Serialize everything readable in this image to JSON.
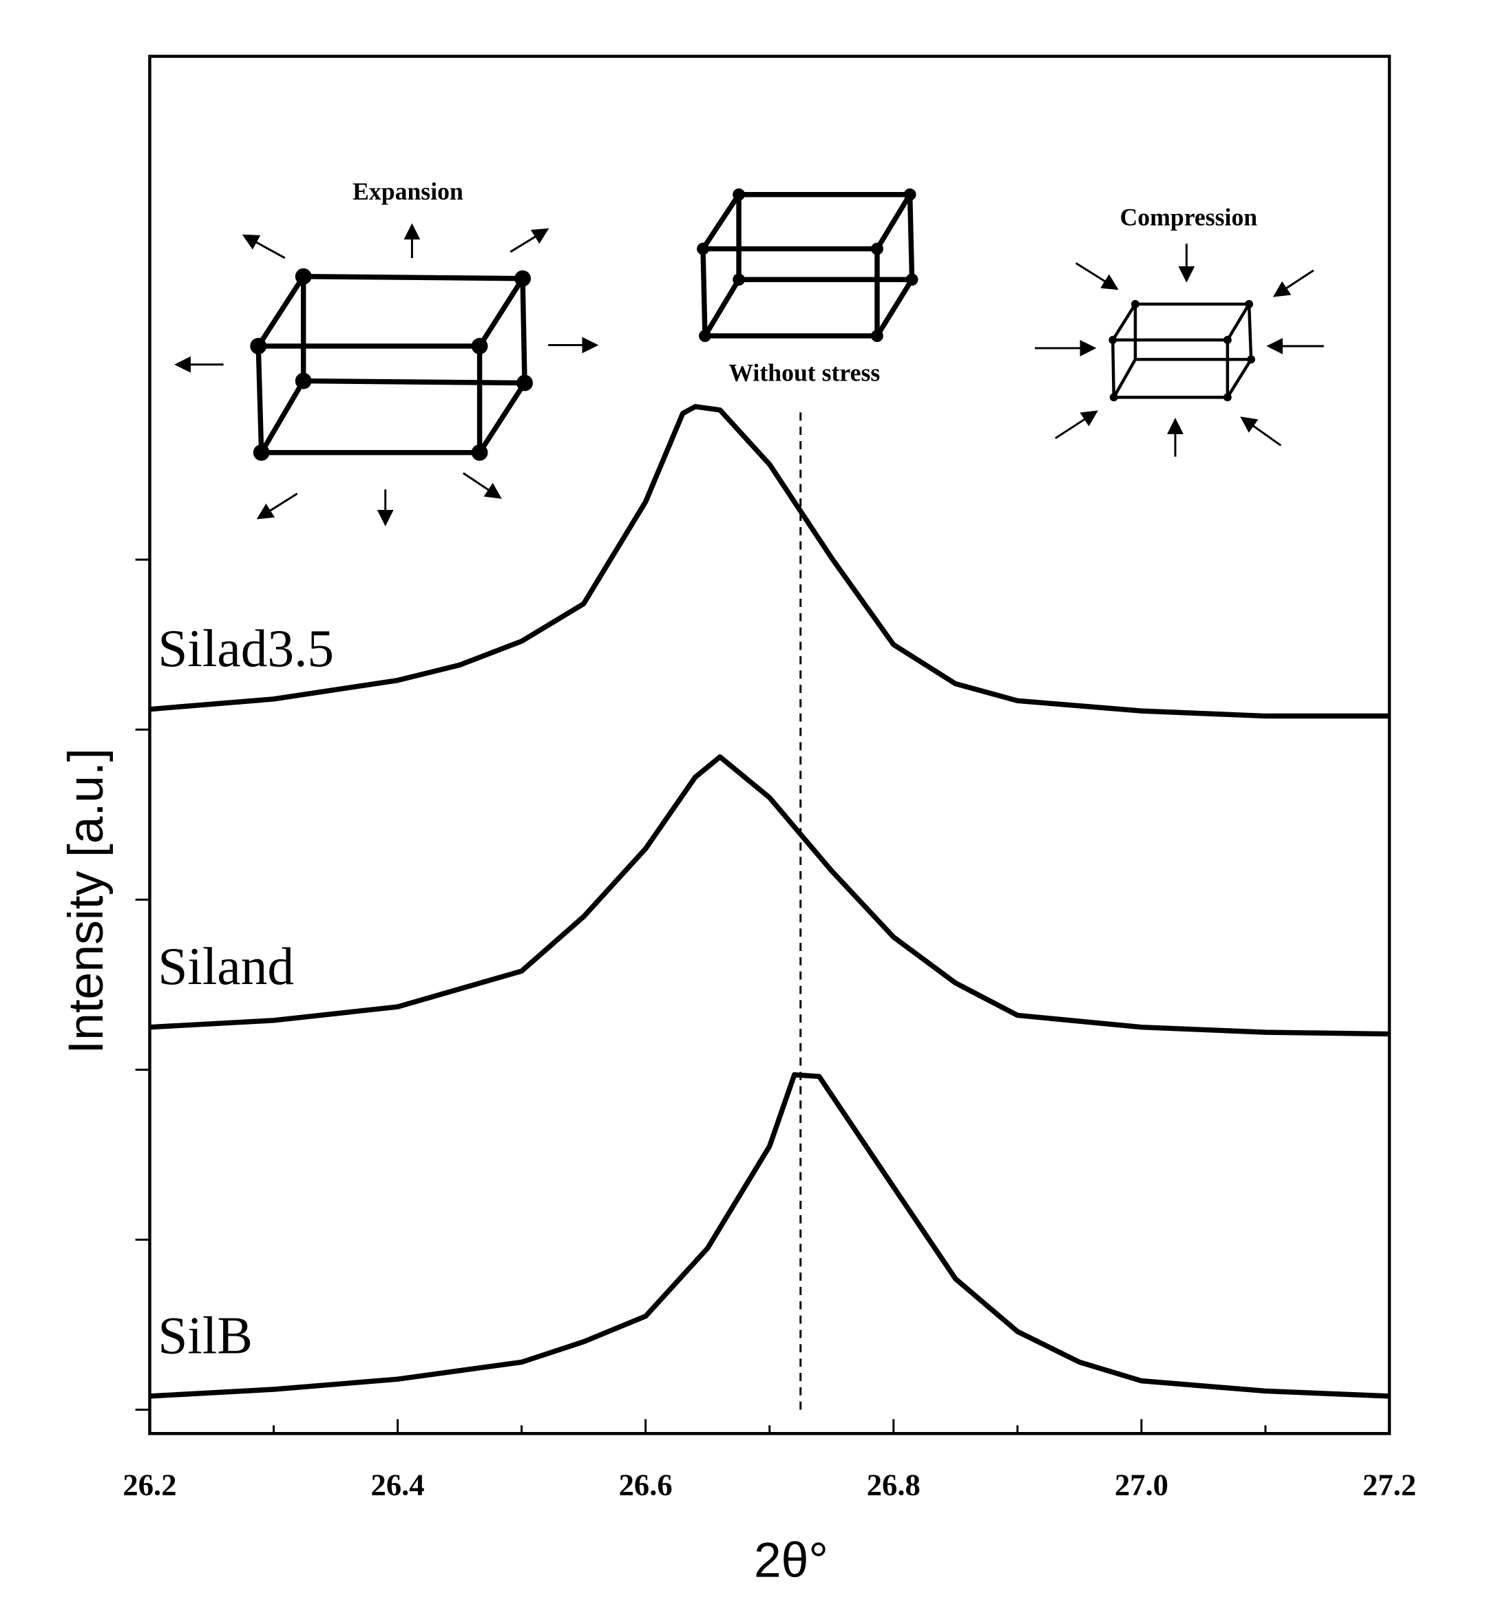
{
  "chart_data": {
    "type": "line",
    "x_label": "2θ°",
    "y_label": "Intensity [a.u.]",
    "xlim": [
      26.2,
      27.2
    ],
    "xticks": [
      26.2,
      26.4,
      26.6,
      26.8,
      {
        "value": 27,
        "label": "27.0"
      },
      27.2
    ],
    "xminorticks": [
      26.3,
      26.5,
      26.7,
      26.9,
      27.1
    ],
    "ylim": [
      -0.14,
      7.96
    ],
    "yticks": [
      0,
      1,
      2,
      3,
      4,
      5
    ],
    "reference_x": 26.725,
    "annotations": [
      "Expansion",
      "Without stress",
      "Compression"
    ],
    "series": [
      {
        "name": "Silad3.5",
        "color": "#000000",
        "x": [
          26.2,
          26.3,
          26.4,
          26.45,
          26.5,
          26.55,
          26.6,
          26.63,
          26.64,
          26.66,
          26.7,
          26.75,
          26.8,
          26.85,
          26.9,
          27.0,
          27.1,
          27.2
        ],
        "values": [
          4.12,
          4.18,
          4.29,
          4.38,
          4.52,
          4.74,
          5.34,
          5.86,
          5.9,
          5.88,
          5.56,
          5.01,
          4.5,
          4.27,
          4.17,
          4.11,
          4.08,
          4.08
        ]
      },
      {
        "name": "Siland",
        "color": "#000000",
        "x": [
          26.2,
          26.3,
          26.4,
          26.5,
          26.55,
          26.6,
          26.64,
          26.66,
          26.7,
          26.75,
          26.8,
          26.85,
          26.9,
          27.0,
          27.1,
          27.2
        ],
        "values": [
          2.25,
          2.29,
          2.37,
          2.58,
          2.9,
          3.3,
          3.72,
          3.84,
          3.6,
          3.17,
          2.78,
          2.51,
          2.32,
          2.25,
          2.22,
          2.21
        ]
      },
      {
        "name": "SilB",
        "color": "#000000",
        "x": [
          26.2,
          26.3,
          26.4,
          26.5,
          26.55,
          26.6,
          26.65,
          26.7,
          26.72,
          26.74,
          26.8,
          26.85,
          26.9,
          26.95,
          27.0,
          27.1,
          27.2
        ],
        "values": [
          0.08,
          0.12,
          0.18,
          0.28,
          0.4,
          0.55,
          0.95,
          1.55,
          1.97,
          1.96,
          1.31,
          0.77,
          0.46,
          0.28,
          0.17,
          0.11,
          0.08
        ]
      }
    ]
  }
}
